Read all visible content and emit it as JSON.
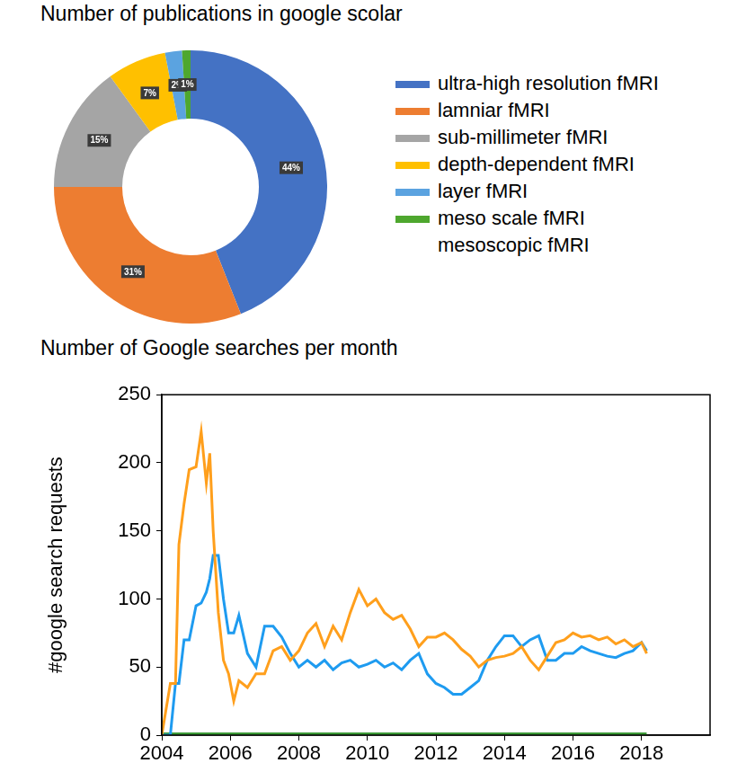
{
  "chart_data": [
    {
      "type": "doughnut",
      "title": "Number of publications in google scolar",
      "categories": [
        "ultra-high resolution fMRI",
        "lamniar fMRI",
        "sub-millimeter fMRI",
        "depth-dependent fMRI",
        "layer fMRI",
        "meso scale fMRI\nmesoscopic fMRI"
      ],
      "values": [
        44,
        31,
        15,
        7,
        2,
        1
      ],
      "value_labels": [
        "44%",
        "31%",
        "15%",
        "7%",
        "2%",
        "1%"
      ],
      "colors": [
        "#4472c4",
        "#ed7d31",
        "#a5a5a5",
        "#ffc000",
        "#5ba3e0",
        "#4ea72e"
      ],
      "data_labels": true,
      "legend": "right"
    },
    {
      "type": "line",
      "title": "Number of Google searches per month",
      "y_label": "#google search requests",
      "x": [
        2004,
        2004.25,
        2004.4,
        2004.5,
        2004.65,
        2004.8,
        2005,
        2005.15,
        2005.3,
        2005.4,
        2005.5,
        2005.65,
        2005.8,
        2005.95,
        2006.1,
        2006.25,
        2006.5,
        2006.75,
        2007,
        2007.25,
        2007.5,
        2007.75,
        2008,
        2008.25,
        2008.5,
        2008.75,
        2009,
        2009.25,
        2009.5,
        2009.75,
        2010,
        2010.25,
        2010.5,
        2010.75,
        2011,
        2011.25,
        2011.5,
        2011.75,
        2012,
        2012.25,
        2012.5,
        2012.75,
        2013,
        2013.25,
        2013.5,
        2013.75,
        2014,
        2014.25,
        2014.5,
        2014.75,
        2015,
        2015.25,
        2015.5,
        2015.75,
        2016,
        2016.25,
        2016.5,
        2016.75,
        2017,
        2017.25,
        2017.5,
        2017.75,
        2018,
        2018.15
      ],
      "series": [
        {
          "name": "lamniar fMRI",
          "color": "#ff9f1c",
          "values": [
            0,
            38,
            38,
            140,
            170,
            195,
            197,
            223,
            185,
            207,
            150,
            90,
            55,
            45,
            25,
            40,
            35,
            45,
            45,
            62,
            65,
            55,
            62,
            75,
            82,
            65,
            80,
            70,
            90,
            107,
            95,
            100,
            90,
            85,
            88,
            78,
            65,
            72,
            72,
            75,
            70,
            63,
            58,
            50,
            55,
            57,
            58,
            60,
            65,
            55,
            48,
            58,
            68,
            70,
            75,
            72,
            73,
            70,
            72,
            67,
            70,
            65,
            68,
            60
          ]
        },
        {
          "name": "layer fMRI",
          "color": "#1e9bf0",
          "values": [
            0,
            0,
            38,
            38,
            70,
            70,
            95,
            97,
            105,
            115,
            132,
            132,
            100,
            75,
            75,
            88,
            60,
            50,
            80,
            80,
            72,
            60,
            50,
            55,
            50,
            55,
            48,
            53,
            55,
            50,
            52,
            55,
            50,
            53,
            48,
            55,
            60,
            45,
            38,
            35,
            30,
            30,
            35,
            40,
            55,
            65,
            73,
            73,
            65,
            70,
            73,
            55,
            55,
            60,
            60,
            65,
            62,
            60,
            58,
            57,
            60,
            62,
            68,
            62
          ]
        },
        {
          "name": "meso scale fMRI\nmesoscopic fMRI",
          "color": "#3c9a37",
          "values": [
            1,
            1,
            1,
            1,
            1,
            1,
            1,
            1,
            1,
            1,
            1,
            1,
            1,
            1,
            1,
            1,
            1,
            1,
            1,
            1,
            1,
            1,
            1,
            1,
            1,
            1,
            1,
            1,
            1,
            1,
            1,
            1,
            1,
            1,
            1,
            1,
            1,
            1,
            1,
            1,
            1,
            1,
            1,
            1,
            1,
            1,
            1,
            1,
            1,
            1,
            1,
            1,
            1,
            1,
            1,
            1,
            1,
            1,
            1,
            1,
            1,
            1,
            1,
            1
          ]
        }
      ],
      "xlim": [
        2004,
        2020
      ],
      "xticks": [
        2004,
        2006,
        2008,
        2010,
        2012,
        2014,
        2016,
        2018
      ],
      "ylim": [
        0,
        250
      ],
      "yticks": [
        0,
        50,
        100,
        150,
        200,
        250
      ],
      "grid": false
    }
  ]
}
